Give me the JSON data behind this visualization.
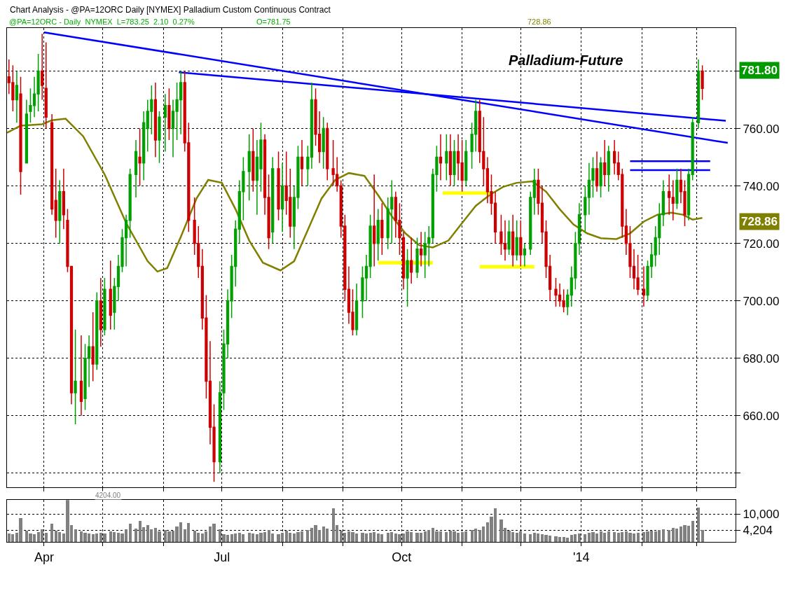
{
  "chart_data": [
    {
      "type": "candlestick",
      "title": "Palladium-Future",
      "subtitle": "Chart Analysis - @PA=12ORC Daily [NYMEX] Palladium Custom Continuous Contract",
      "x": [
        "2013-03-14",
        "2013-03-16",
        "2013-03-18",
        "2013-03-20",
        "2013-03-23",
        "2013-03-25",
        "2013-03-27",
        "2013-03-29",
        "2013-03-31",
        "2013-04-02",
        "2013-04-05",
        "2013-04-07",
        "2013-04-09",
        "2013-04-11",
        "2013-04-13",
        "2013-04-15",
        "2013-04-17",
        "2013-04-20",
        "2013-04-22",
        "2013-04-24",
        "2013-04-26",
        "2013-04-28",
        "2013-04-30",
        "2013-05-02",
        "2013-05-05",
        "2013-05-07",
        "2013-05-09",
        "2013-05-11",
        "2013-05-13",
        "2013-05-15",
        "2013-05-18",
        "2013-05-20",
        "2013-05-22",
        "2013-05-24",
        "2013-05-26",
        "2013-05-28",
        "2013-05-30",
        "2013-06-02",
        "2013-06-04",
        "2013-06-06",
        "2013-06-08",
        "2013-06-10",
        "2013-06-12",
        "2013-06-14",
        "2013-06-17",
        "2013-06-19",
        "2013-06-21",
        "2013-06-23",
        "2013-06-25",
        "2013-06-27",
        "2013-06-30",
        "2013-07-02",
        "2013-07-04",
        "2013-07-06",
        "2013-07-08",
        "2013-07-10",
        "2013-07-12",
        "2013-07-15",
        "2013-07-17",
        "2013-07-19",
        "2013-07-21",
        "2013-07-23",
        "2013-07-25",
        "2013-07-27",
        "2013-07-30",
        "2013-08-01",
        "2013-08-03",
        "2013-08-05",
        "2013-08-07",
        "2013-08-09",
        "2013-08-11",
        "2013-08-14",
        "2013-08-16",
        "2013-08-18",
        "2013-08-20",
        "2013-08-22",
        "2013-08-24",
        "2013-08-27",
        "2013-08-29",
        "2013-08-31",
        "2013-09-02",
        "2013-09-04",
        "2013-09-06",
        "2013-09-08",
        "2013-09-11",
        "2013-09-13",
        "2013-09-15",
        "2013-09-17",
        "2013-09-19",
        "2013-09-21",
        "2013-09-24",
        "2013-09-26",
        "2013-09-28",
        "2013-09-30",
        "2013-10-02",
        "2013-10-04",
        "2013-10-06",
        "2013-10-09",
        "2013-10-11",
        "2013-10-13",
        "2013-10-15",
        "2013-10-17",
        "2013-10-19",
        "2013-10-21",
        "2013-10-24",
        "2013-10-26",
        "2013-10-28",
        "2013-10-30",
        "2013-11-01",
        "2013-11-03",
        "2013-11-06",
        "2013-11-08",
        "2013-11-10",
        "2013-11-12",
        "2013-11-14",
        "2013-11-16",
        "2013-11-18",
        "2013-11-21",
        "2013-11-23",
        "2013-11-25",
        "2013-11-27",
        "2013-11-29",
        "2013-12-01",
        "2013-12-03",
        "2013-12-06",
        "2013-12-08",
        "2013-12-10",
        "2013-12-12",
        "2013-12-14",
        "2013-12-16",
        "2013-12-19",
        "2013-12-21",
        "2013-12-23",
        "2013-12-25",
        "2013-12-27",
        "2013-12-29",
        "2013-12-31",
        "2014-01-03",
        "2014-01-05",
        "2014-01-07",
        "2014-01-09",
        "2014-01-11",
        "2014-01-13",
        "2014-01-15",
        "2014-01-18",
        "2014-01-20",
        "2014-01-22",
        "2014-01-24",
        "2014-01-26",
        "2014-01-28",
        "2014-01-30",
        "2014-02-02",
        "2014-02-04",
        "2014-02-06",
        "2014-02-08",
        "2014-02-10",
        "2014-02-12",
        "2014-02-15",
        "2014-02-17",
        "2014-02-19",
        "2014-02-21",
        "2014-02-23",
        "2014-02-25",
        "2014-02-27",
        "2014-03-02",
        "2014-03-04"
      ],
      "series": [
        {
          "type": "line",
          "color": "#808000",
          "x": [
            "2013-03-13",
            "2013-03-20",
            "2013-03-31",
            "2013-04-05",
            "2013-04-12",
            "2013-04-21",
            "2013-05-02",
            "2013-05-13",
            "2013-05-24",
            "2013-05-29",
            "2013-06-03",
            "2013-06-10",
            "2013-06-18",
            "2013-06-24",
            "2013-07-01",
            "2013-07-08",
            "2013-07-15",
            "2013-07-22",
            "2013-07-31",
            "2013-08-07",
            "2013-08-14",
            "2013-08-21",
            "2013-08-28",
            "2013-09-04",
            "2013-09-12",
            "2013-09-19",
            "2013-09-26",
            "2013-10-03",
            "2013-10-10",
            "2013-10-17",
            "2013-10-25",
            "2013-11-01",
            "2013-11-08",
            "2013-11-15",
            "2013-11-22",
            "2013-11-29",
            "2013-12-07",
            "2013-12-14",
            "2013-12-21",
            "2013-12-28",
            "2014-01-04",
            "2014-01-11",
            "2014-01-19",
            "2014-01-26",
            "2014-02-02",
            "2014-02-09",
            "2014-02-16",
            "2014-02-22",
            "2014-02-27",
            "2014-03-04"
          ],
          "values": [
            758.5,
            761,
            761.5,
            762.9,
            763.4,
            757.3,
            744,
            727.1,
            713.8,
            710.2,
            711.4,
            722.3,
            735.6,
            742.1,
            741.1,
            731.9,
            721,
            713.3,
            710.6,
            713.8,
            724.7,
            735.6,
            742.1,
            744.5,
            743.5,
            736.8,
            729.5,
            723.5,
            719.4,
            718.6,
            721,
            727.1,
            733.1,
            736.8,
            739.7,
            741.1,
            741.6,
            738,
            731.9,
            726.6,
            723.5,
            721.8,
            721.5,
            723.5,
            727.6,
            730,
            730.7,
            730,
            728.3,
            728.9
          ]
        },
        {
          "type": "line",
          "color": "#0000ff",
          "x": [
            "2013-04-01",
            "2014-03-17"
          ],
          "values": [
            793.5,
            755
          ]
        },
        {
          "type": "line",
          "color": "#0000ff",
          "x": [
            "2013-06-09",
            "2014-03-16"
          ],
          "values": [
            779.6,
            762.7
          ]
        },
        {
          "type": "line",
          "color": "#0000ff",
          "x": [
            "2014-01-26",
            "2014-03-08"
          ],
          "values": [
            748.6,
            748.6
          ]
        },
        {
          "type": "line",
          "color": "#0000ff",
          "x": [
            "2014-01-26",
            "2014-03-08"
          ],
          "values": [
            745.5,
            745.5
          ]
        },
        {
          "type": "line",
          "color": "#ffff00",
          "x": [
            "2013-09-19",
            "2013-10-17"
          ],
          "values": [
            713.3,
            713.3
          ]
        },
        {
          "type": "line",
          "color": "#ffff00",
          "x": [
            "2013-10-22",
            "2013-11-16"
          ],
          "values": [
            737.5,
            737.5
          ]
        },
        {
          "type": "line",
          "color": "#ffff00",
          "x": [
            "2013-11-10",
            "2013-12-08"
          ],
          "values": [
            711.9,
            711.9
          ]
        },
        {
          "type": "candlestick",
          "ohlc": [
            [
              778,
              784,
              772,
              776
            ],
            [
              776,
              782,
              766,
              770
            ],
            [
              770,
              780,
              762,
              775
            ],
            [
              772,
              778,
              737,
              745
            ],
            [
              748,
              770,
              748,
              765
            ],
            [
              766,
              774,
              762,
              768
            ],
            [
              768,
              778,
              764,
              772
            ],
            [
              772,
              786,
              766,
              780
            ],
            [
              780,
              793,
              770,
              775
            ],
            [
              774,
              790,
              760,
              764
            ],
            [
              762,
              765,
              730,
              732
            ],
            [
              735,
              746,
              722,
              728
            ],
            [
              728,
              742,
              720,
              738
            ],
            [
              738,
              746,
              725,
              730
            ],
            [
              728,
              732,
              710,
              712
            ],
            [
              712,
              712,
              664,
              668
            ],
            [
              668,
              690,
              657,
              672
            ],
            [
              672,
              688,
              660,
              665
            ],
            [
              666,
              685,
              662,
              680
            ],
            [
              680,
              688,
              670,
              684
            ],
            [
              684,
              696,
              672,
              678
            ],
            [
              678,
              703,
              676,
              700
            ],
            [
              700,
              708,
              684,
              690
            ],
            [
              690,
              708,
              688,
              704
            ],
            [
              704,
              714,
              690,
              695
            ],
            [
              696,
              708,
              690,
              705
            ],
            [
              705,
              716,
              700,
              712
            ],
            [
              712,
              725,
              710,
              722
            ],
            [
              722,
              730,
              712,
              728
            ],
            [
              728,
              746,
              722,
              744
            ],
            [
              744,
              756,
              736,
              752
            ],
            [
              750,
              760,
              740,
              748
            ],
            [
              748,
              766,
              742,
              762
            ],
            [
              760,
              770,
              752,
              766
            ],
            [
              766,
              775,
              758,
              770
            ],
            [
              770,
              776,
              750,
              756
            ],
            [
              756,
              766,
              748,
              764
            ],
            [
              764,
              772,
              752,
              768
            ],
            [
              768,
              774,
              756,
              760
            ],
            [
              760,
              770,
              750,
              766
            ],
            [
              766,
              776,
              756,
              770
            ],
            [
              770,
              780,
              758,
              776
            ],
            [
              776,
              780,
              752,
              755
            ],
            [
              755,
              762,
              724,
              728
            ],
            [
              728,
              736,
              716,
              720
            ],
            [
              720,
              726,
              708,
              712
            ],
            [
              712,
              718,
              690,
              694
            ],
            [
              694,
              702,
              666,
              672
            ],
            [
              672,
              686,
              650,
              656
            ],
            [
              656,
              664,
              637,
              644
            ],
            [
              644,
              672,
              640,
              668
            ],
            [
              668,
              690,
              662,
              685
            ],
            [
              685,
              704,
              680,
              700
            ],
            [
              700,
              716,
              694,
              712
            ],
            [
              712,
              728,
              705,
              725
            ],
            [
              725,
              742,
              720,
              738
            ],
            [
              738,
              750,
              728,
              745
            ],
            [
              745,
              758,
              735,
              752
            ],
            [
              752,
              760,
              738,
              742
            ],
            [
              742,
              756,
              730,
              750
            ],
            [
              746,
              762,
              738,
              756
            ],
            [
              756,
              758,
              730,
              736
            ],
            [
              736,
              744,
              718,
              722
            ],
            [
              724,
              750,
              720,
              746
            ],
            [
              746,
              752,
              728,
              732
            ],
            [
              732,
              748,
              724,
              740
            ],
            [
              740,
              752,
              730,
              735
            ],
            [
              736,
              746,
              722,
              726
            ],
            [
              726,
              740,
              718,
              736
            ],
            [
              736,
              754,
              732,
              750
            ],
            [
              750,
              756,
              740,
              746
            ],
            [
              746,
              754,
              740,
              750
            ],
            [
              750,
              776,
              746,
              770
            ],
            [
              770,
              774,
              754,
              758
            ],
            [
              758,
              766,
              748,
              752
            ],
            [
              752,
              764,
              746,
              760
            ],
            [
              760,
              762,
              742,
              746
            ],
            [
              746,
              756,
              740,
              744
            ],
            [
              744,
              750,
              738,
              740
            ],
            [
              740,
              742,
              722,
              726
            ],
            [
              726,
              730,
              700,
              704
            ],
            [
              704,
              712,
              692,
              696
            ],
            [
              696,
              704,
              688,
              690
            ],
            [
              690,
              706,
              688,
              700
            ],
            [
              700,
              712,
              694,
              708
            ],
            [
              708,
              716,
              700,
              712
            ],
            [
              712,
              730,
              708,
              726
            ],
            [
              726,
              744,
              712,
              720
            ],
            [
              720,
              732,
              714,
              728
            ],
            [
              728,
              734,
              716,
              722
            ],
            [
              722,
              736,
              718,
              732
            ],
            [
              732,
              742,
              720,
              736
            ],
            [
              736,
              738,
              722,
              728
            ],
            [
              728,
              734,
              716,
              722
            ],
            [
              722,
              724,
              704,
              708
            ],
            [
              708,
              718,
              698,
              714
            ],
            [
              714,
              722,
              706,
              710
            ],
            [
              710,
              722,
              708,
              718
            ],
            [
              718,
              724,
              712,
              716
            ],
            [
              716,
              724,
              708,
              720
            ],
            [
              720,
              726,
              712,
              722
            ],
            [
              722,
              746,
              720,
              744
            ],
            [
              744,
              754,
              738,
              750
            ],
            [
              750,
              758,
              742,
              748
            ],
            [
              748,
              758,
              742,
              752
            ],
            [
              752,
              758,
              740,
              744
            ],
            [
              744,
              756,
              740,
              752
            ],
            [
              752,
              758,
              742,
              748
            ],
            [
              748,
              756,
              738,
              742
            ],
            [
              742,
              756,
              740,
              752
            ],
            [
              752,
              762,
              746,
              758
            ],
            [
              758,
              770,
              752,
              766
            ],
            [
              766,
              770,
              748,
              752
            ],
            [
              752,
              764,
              740,
              746
            ],
            [
              746,
              750,
              734,
              738
            ],
            [
              738,
              744,
              730,
              734
            ],
            [
              734,
              738,
              720,
              724
            ],
            [
              724,
              730,
              716,
              720
            ],
            [
              720,
              728,
              714,
              718
            ],
            [
              718,
              728,
              716,
              724
            ],
            [
              724,
              730,
              712,
              716
            ],
            [
              716,
              728,
              714,
              722
            ],
            [
              722,
              728,
              712,
              716
            ],
            [
              716,
              720,
              712,
              718
            ],
            [
              718,
              738,
              716,
              736
            ],
            [
              736,
              746,
              730,
              742
            ],
            [
              742,
              746,
              730,
              734
            ],
            [
              734,
              740,
              720,
              724
            ],
            [
              724,
              728,
              708,
              712
            ],
            [
              712,
              716,
              700,
              704
            ],
            [
              704,
              708,
              698,
              702
            ],
            [
              702,
              706,
              698,
              700
            ],
            [
              700,
              704,
              696,
              698
            ],
            [
              698,
              704,
              695,
              702
            ],
            [
              702,
              712,
              698,
              708
            ],
            [
              708,
              724,
              704,
              720
            ],
            [
              720,
              734,
              716,
              730
            ],
            [
              730,
              740,
              724,
              736
            ],
            [
              736,
              748,
              730,
              742
            ],
            [
              742,
              750,
              736,
              746
            ],
            [
              746,
              752,
              738,
              740
            ],
            [
              740,
              750,
              736,
              748
            ],
            [
              748,
              756,
              740,
              744
            ],
            [
              744,
              754,
              738,
              752
            ],
            [
              752,
              756,
              744,
              748
            ],
            [
              748,
              752,
              742,
              744
            ],
            [
              744,
              746,
              722,
              726
            ],
            [
              726,
              732,
              716,
              720
            ],
            [
              720,
              726,
              708,
              712
            ],
            [
              712,
              718,
              704,
              708
            ],
            [
              708,
              716,
              702,
              704
            ],
            [
              704,
              712,
              698,
              702
            ],
            [
              702,
              714,
              700,
              712
            ],
            [
              712,
              720,
              708,
              716
            ],
            [
              716,
              726,
              712,
              722
            ],
            [
              722,
              734,
              716,
              730
            ],
            [
              730,
              742,
              726,
              738
            ],
            [
              738,
              744,
              730,
              736
            ],
            [
              736,
              742,
              728,
              734
            ],
            [
              734,
              746,
              732,
              742
            ],
            [
              742,
              746,
              734,
              738
            ],
            [
              738,
              742,
              726,
              730
            ],
            [
              730,
              746,
              728,
              744
            ],
            [
              744,
              764,
              742,
              762
            ],
            [
              762,
              784,
              760,
              780
            ],
            [
              780,
              782,
              770,
              774
            ]
          ],
          "colors": [
            "#cc0000",
            "#cc0000",
            "#00a000",
            "#cc0000",
            "#00a000",
            "#00a000",
            "#00a000",
            "#00a000",
            "#cc0000",
            "#cc0000",
            "#cc0000",
            "#cc0000",
            "#00a000",
            "#cc0000",
            "#cc0000",
            "#cc0000",
            "#00a000",
            "#cc0000",
            "#00a000",
            "#00a000",
            "#cc0000",
            "#00a000",
            "#cc0000",
            "#00a000",
            "#cc0000",
            "#00a000",
            "#00a000",
            "#00a000",
            "#00a000",
            "#00a000",
            "#00a000",
            "#cc0000",
            "#00a000",
            "#00a000",
            "#00a000",
            "#cc0000",
            "#00a000",
            "#00a000",
            "#cc0000",
            "#00a000",
            "#00a000",
            "#00a000",
            "#cc0000",
            "#cc0000",
            "#cc0000",
            "#cc0000",
            "#cc0000",
            "#cc0000",
            "#cc0000",
            "#cc0000",
            "#00a000",
            "#00a000",
            "#00a000",
            "#00a000",
            "#00a000",
            "#00a000",
            "#00a000",
            "#00a000",
            "#cc0000",
            "#00a000",
            "#00a000",
            "#cc0000",
            "#cc0000",
            "#00a000",
            "#cc0000",
            "#00a000",
            "#cc0000",
            "#cc0000",
            "#00a000",
            "#00a000",
            "#cc0000",
            "#00a000",
            "#00a000",
            "#cc0000",
            "#cc0000",
            "#00a000",
            "#cc0000",
            "#cc0000",
            "#cc0000",
            "#cc0000",
            "#cc0000",
            "#cc0000",
            "#cc0000",
            "#00a000",
            "#00a000",
            "#00a000",
            "#00a000",
            "#cc0000",
            "#00a000",
            "#cc0000",
            "#00a000",
            "#00a000",
            "#cc0000",
            "#cc0000",
            "#cc0000",
            "#00a000",
            "#cc0000",
            "#00a000",
            "#cc0000",
            "#00a000",
            "#00a000",
            "#00a000",
            "#00a000",
            "#cc0000",
            "#00a000",
            "#cc0000",
            "#00a000",
            "#cc0000",
            "#cc0000",
            "#00a000",
            "#00a000",
            "#00a000",
            "#cc0000",
            "#cc0000",
            "#cc0000",
            "#cc0000",
            "#cc0000",
            "#cc0000",
            "#cc0000",
            "#00a000",
            "#cc0000",
            "#00a000",
            "#cc0000",
            "#00a000",
            "#00a000",
            "#00a000",
            "#cc0000",
            "#cc0000",
            "#cc0000",
            "#cc0000",
            "#cc0000",
            "#cc0000",
            "#cc0000",
            "#00a000",
            "#00a000",
            "#00a000",
            "#00a000",
            "#00a000",
            "#00a000",
            "#00a000",
            "#cc0000",
            "#00a000",
            "#cc0000",
            "#00a000",
            "#cc0000",
            "#cc0000",
            "#cc0000",
            "#cc0000",
            "#cc0000",
            "#cc0000",
            "#cc0000",
            "#cc0000",
            "#00a000",
            "#00a000",
            "#00a000",
            "#00a000",
            "#00a000",
            "#cc0000",
            "#cc0000",
            "#00a000",
            "#cc0000",
            "#cc0000",
            "#00a000",
            "#00a000",
            "#00a000",
            "#cc0000"
          ]
        }
      ],
      "xlim": [
        "2013-03-13",
        "2014-03-21"
      ],
      "xticks": [
        {
          "value": "2013-04-01",
          "label": null
        },
        {
          "value": "2013-05-01",
          "label": null
        },
        {
          "value": "2013-06-01",
          "label": null
        },
        {
          "value": "2013-07-01",
          "label": null
        },
        {
          "value": "2013-08-01",
          "label": null
        },
        {
          "value": "2013-09-01",
          "label": null
        },
        {
          "value": "2013-10-01",
          "label": null
        },
        {
          "value": "2013-11-01",
          "label": null
        },
        {
          "value": "2013-12-01",
          "label": null
        },
        {
          "value": "2014-01-01",
          "label": null
        },
        {
          "value": "2014-02-01",
          "label": null
        },
        {
          "value": "2014-03-01",
          "label": null
        }
      ],
      "ylim": [
        635,
        795
      ],
      "yticks": [
        {
          "value": 640,
          "label": null
        },
        {
          "value": 660,
          "label": "660.00"
        },
        {
          "value": 680,
          "label": "680.00"
        },
        {
          "value": 700,
          "label": "700.00"
        },
        {
          "value": 720,
          "label": "720.00"
        },
        {
          "value": 740,
          "label": "740.00"
        },
        {
          "value": 760,
          "label": "760.00"
        },
        {
          "value": 780,
          "label": null
        }
      ],
      "grid": true,
      "tick_labels": "y",
      "annotations": [
        "@PA=12ORC - Daily  NYMEX  L=783.25  2.10  0.27%",
        "O=781.75",
        "728.86",
        "781.80",
        "728.86"
      ]
    },
    {
      "type": "bar",
      "color": "#808080",
      "x": [
        "2013-03-14",
        "2013-03-16",
        "2013-03-18",
        "2013-03-20",
        "2013-03-23",
        "2013-03-25",
        "2013-03-27",
        "2013-03-29",
        "2013-03-31",
        "2013-04-02",
        "2013-04-05",
        "2013-04-07",
        "2013-04-09",
        "2013-04-11",
        "2013-04-13",
        "2013-04-15",
        "2013-04-17",
        "2013-04-20",
        "2013-04-22",
        "2013-04-24",
        "2013-04-26",
        "2013-04-28",
        "2013-04-30",
        "2013-05-02",
        "2013-05-05",
        "2013-05-07",
        "2013-05-09",
        "2013-05-11",
        "2013-05-13",
        "2013-05-15",
        "2013-05-18",
        "2013-05-20",
        "2013-05-22",
        "2013-05-24",
        "2013-05-26",
        "2013-05-28",
        "2013-05-30",
        "2013-06-02",
        "2013-06-04",
        "2013-06-06",
        "2013-06-08",
        "2013-06-10",
        "2013-06-12",
        "2013-06-14",
        "2013-06-17",
        "2013-06-19",
        "2013-06-21",
        "2013-06-23",
        "2013-06-25",
        "2013-06-27",
        "2013-06-30",
        "2013-07-02",
        "2013-07-04",
        "2013-07-06",
        "2013-07-08",
        "2013-07-10",
        "2013-07-12",
        "2013-07-15",
        "2013-07-17",
        "2013-07-19",
        "2013-07-21",
        "2013-07-23",
        "2013-07-25",
        "2013-07-27",
        "2013-07-30",
        "2013-08-01",
        "2013-08-03",
        "2013-08-05",
        "2013-08-07",
        "2013-08-09",
        "2013-08-11",
        "2013-08-14",
        "2013-08-16",
        "2013-08-18",
        "2013-08-20",
        "2013-08-22",
        "2013-08-24",
        "2013-08-27",
        "2013-08-29",
        "2013-08-31",
        "2013-09-02",
        "2013-09-04",
        "2013-09-06",
        "2013-09-08",
        "2013-09-11",
        "2013-09-13",
        "2013-09-15",
        "2013-09-17",
        "2013-09-19",
        "2013-09-21",
        "2013-09-24",
        "2013-09-26",
        "2013-09-28",
        "2013-09-30",
        "2013-10-02",
        "2013-10-04",
        "2013-10-06",
        "2013-10-09",
        "2013-10-11",
        "2013-10-13",
        "2013-10-15",
        "2013-10-17",
        "2013-10-19",
        "2013-10-21",
        "2013-10-24",
        "2013-10-26",
        "2013-10-28",
        "2013-10-30",
        "2013-11-01",
        "2013-11-03",
        "2013-11-06",
        "2013-11-08",
        "2013-11-10",
        "2013-11-12",
        "2013-11-14",
        "2013-11-16",
        "2013-11-18",
        "2013-11-21",
        "2013-11-23",
        "2013-11-25",
        "2013-11-27",
        "2013-11-29",
        "2013-12-01",
        "2013-12-03",
        "2013-12-06",
        "2013-12-08",
        "2013-12-10",
        "2013-12-12",
        "2013-12-14",
        "2013-12-16",
        "2013-12-19",
        "2013-12-21",
        "2013-12-23",
        "2013-12-25",
        "2013-12-27",
        "2013-12-29",
        "2013-12-31",
        "2014-01-03",
        "2014-01-05",
        "2014-01-07",
        "2014-01-09",
        "2014-01-11",
        "2014-01-13",
        "2014-01-15",
        "2014-01-18",
        "2014-01-20",
        "2014-01-22",
        "2014-01-24",
        "2014-01-26",
        "2014-01-28",
        "2014-01-30",
        "2014-02-02",
        "2014-02-04",
        "2014-02-06",
        "2014-02-08",
        "2014-02-10",
        "2014-02-12",
        "2014-02-15",
        "2014-02-17",
        "2014-02-19",
        "2014-02-21",
        "2014-02-23",
        "2014-02-25",
        "2014-02-27",
        "2014-03-02",
        "2014-03-04"
      ],
      "values": [
        3000,
        2600,
        3200,
        8400,
        4000,
        3000,
        2800,
        3500,
        4500,
        3200,
        6500,
        4000,
        3500,
        3000,
        14900,
        6000,
        4500,
        3800,
        3200,
        3000,
        2800,
        3000,
        3300,
        2900,
        3600,
        3400,
        3100,
        3000,
        4500,
        6500,
        4800,
        7500,
        5200,
        6000,
        4500,
        5000,
        3800,
        4200,
        3600,
        4000,
        5500,
        7000,
        4500,
        6800,
        4000,
        3200,
        3000,
        3600,
        5500,
        6500,
        4500,
        2800,
        2500,
        2600,
        2900,
        3100,
        2800,
        3300,
        3000,
        2700,
        3200,
        3500,
        4200,
        3000,
        2800,
        3300,
        4000,
        3100,
        2900,
        3400,
        3800,
        4200,
        5000,
        6000,
        4200,
        5500,
        4800,
        11900,
        6000,
        4000,
        3200,
        3600,
        3400,
        3000,
        3300,
        2900,
        3100,
        3500,
        3000,
        2800,
        3200,
        3400,
        3000,
        2700,
        3000,
        3600,
        3400,
        3100,
        3300,
        3800,
        4200,
        5000,
        3800,
        3600,
        3400,
        3900,
        3700,
        3300,
        3500,
        3800,
        4100,
        4600,
        4200,
        5500,
        7000,
        9000,
        11900,
        8000,
        5000,
        4000,
        3500,
        3200,
        3600,
        3000,
        2800,
        3300,
        3000,
        2600,
        2400,
        2200,
        2000,
        1800,
        1600,
        1500,
        2400,
        2800,
        3000,
        2800,
        3200,
        3400,
        3000,
        3600,
        3300,
        3800,
        3500,
        3200,
        3400,
        3600,
        3100,
        2900,
        3300,
        3500,
        3800,
        4000,
        3700,
        4200,
        4500,
        4300,
        5000,
        4800,
        5500,
        6000,
        5600,
        7500,
        12300,
        4204
      ],
      "xlim": [
        "2013-03-13",
        "2014-03-21"
      ],
      "xticks": [
        {
          "value": "2013-04-01",
          "label": "Apr"
        },
        {
          "value": "2013-05-01",
          "label": null
        },
        {
          "value": "2013-06-01",
          "label": null
        },
        {
          "value": "2013-07-01",
          "label": "Jul"
        },
        {
          "value": "2013-08-01",
          "label": null
        },
        {
          "value": "2013-09-01",
          "label": null
        },
        {
          "value": "2013-10-01",
          "label": "Oct"
        },
        {
          "value": "2013-11-01",
          "label": null
        },
        {
          "value": "2013-12-01",
          "label": null
        },
        {
          "value": "2014-01-01",
          "label": "'14"
        },
        {
          "value": "2014-02-01",
          "label": null
        },
        {
          "value": "2014-03-01",
          "label": null
        }
      ],
      "ylim": [
        0,
        15000
      ],
      "yticks": [
        {
          "value": 4204,
          "label": "4,204"
        },
        {
          "value": 10000,
          "label": "10,000"
        }
      ],
      "grid": true,
      "annotations": [
        "4204.00"
      ]
    }
  ]
}
